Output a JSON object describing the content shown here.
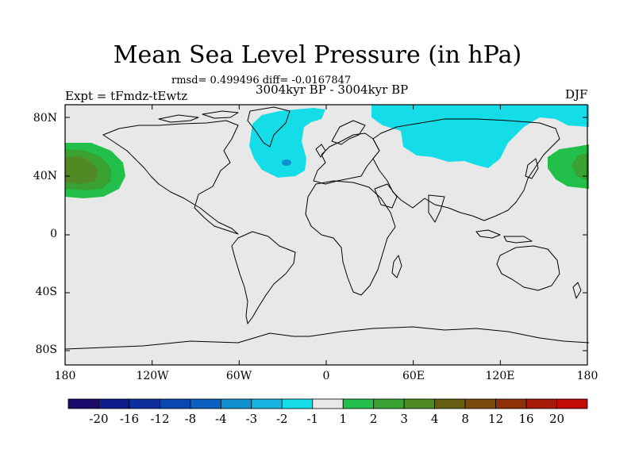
{
  "title": "Mean Sea Level Pressure (in hPa)",
  "stats": "rmsd= 0.499496 diff= -0.0167847",
  "period": "3004kyr BP - 3004kyr BP",
  "experiment": "Expt = tFmdz-tEwtz",
  "season": "DJF",
  "lat_ticks": [
    "80N",
    "40N",
    "0",
    "40S",
    "80S"
  ],
  "lon_ticks": [
    "180",
    "120W",
    "60W",
    "0",
    "60E",
    "120E",
    "180"
  ],
  "colorbar": {
    "labels": [
      "-20",
      "-16",
      "-12",
      "-8",
      "-4",
      "-3",
      "-2",
      "-1",
      "1",
      "2",
      "3",
      "4",
      "8",
      "12",
      "16",
      "20"
    ],
    "colors": [
      "#1b0a6b",
      "#0c1a8a",
      "#0d2f9e",
      "#0a47b0",
      "#0a5fbf",
      "#1190cf",
      "#16b2e0",
      "#15dde8",
      "#e8e8e8",
      "#22bf4a",
      "#3aa233",
      "#4f8a24",
      "#655e12",
      "#7a4a0c",
      "#8e3108",
      "#a41a06",
      "#c20b05"
    ]
  },
  "map": {
    "background_color": "#e8e8e8",
    "anomalies": [
      {
        "name": "north-atlantic-low",
        "level": "-1"
      },
      {
        "name": "siberian-low",
        "level": "-1"
      },
      {
        "name": "north-pacific-high",
        "level": "2"
      }
    ]
  }
}
